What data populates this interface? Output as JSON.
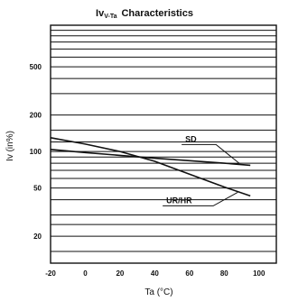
{
  "chart_data": {
    "type": "line",
    "title": "Characteristics",
    "title_symbol": "Iv",
    "title_subscript": "V-Ta",
    "xlabel": "Ta (°C)",
    "ylabel": "Iv (in%)",
    "x_scale": "linear",
    "y_scale": "log",
    "xlim": [
      -20,
      110
    ],
    "ylim": [
      12,
      1100
    ],
    "x_ticks": [
      -20,
      0,
      20,
      40,
      60,
      80,
      100
    ],
    "y_ticks": [
      20,
      50,
      100,
      200,
      500
    ],
    "y_grid_values": [
      15,
      20,
      25,
      30,
      40,
      50,
      60,
      70,
      80,
      90,
      100,
      120,
      150,
      200,
      300,
      400,
      500,
      600,
      700,
      800,
      900,
      1000
    ],
    "grid": "horizontal",
    "series": [
      {
        "name": "SD",
        "x": [
          -20,
          0,
          20,
          40,
          60,
          80,
          95
        ],
        "y": [
          104,
          98,
          93,
          88,
          84,
          80,
          77
        ]
      },
      {
        "name": "UR/HR",
        "x": [
          -20,
          0,
          20,
          40,
          60,
          80,
          95
        ],
        "y": [
          130,
          115,
          100,
          83,
          65,
          51,
          43
        ]
      }
    ]
  }
}
